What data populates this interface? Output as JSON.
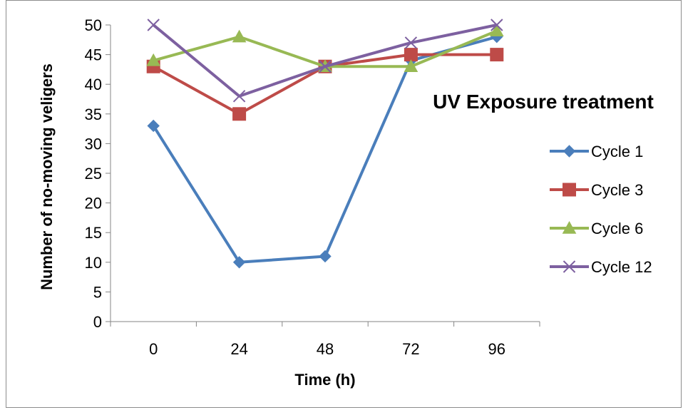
{
  "chart_data": {
    "type": "line",
    "title": "",
    "xlabel": "Time (h)",
    "ylabel": "Number of no-moving veligers",
    "legend_title": "UV Exposure treatment",
    "categories": [
      "0",
      "24",
      "48",
      "72",
      "96"
    ],
    "ylim": [
      0,
      50
    ],
    "yticks": [
      0,
      5,
      10,
      15,
      20,
      25,
      30,
      35,
      40,
      45,
      50
    ],
    "grid": false,
    "legend_position": "right",
    "series": [
      {
        "name": "Cycle 1",
        "values": [
          33,
          10,
          11,
          44,
          48
        ],
        "color": "#4a7ebb",
        "marker": "diamond"
      },
      {
        "name": "Cycle 3",
        "values": [
          43,
          35,
          43,
          45,
          45
        ],
        "color": "#be4b48",
        "marker": "square"
      },
      {
        "name": "Cycle 6",
        "values": [
          44,
          48,
          43,
          43,
          49
        ],
        "color": "#98b954",
        "marker": "triangle"
      },
      {
        "name": "Cycle 12",
        "values": [
          50,
          38,
          43,
          47,
          50
        ],
        "color": "#7d60a0",
        "marker": "x"
      }
    ]
  }
}
